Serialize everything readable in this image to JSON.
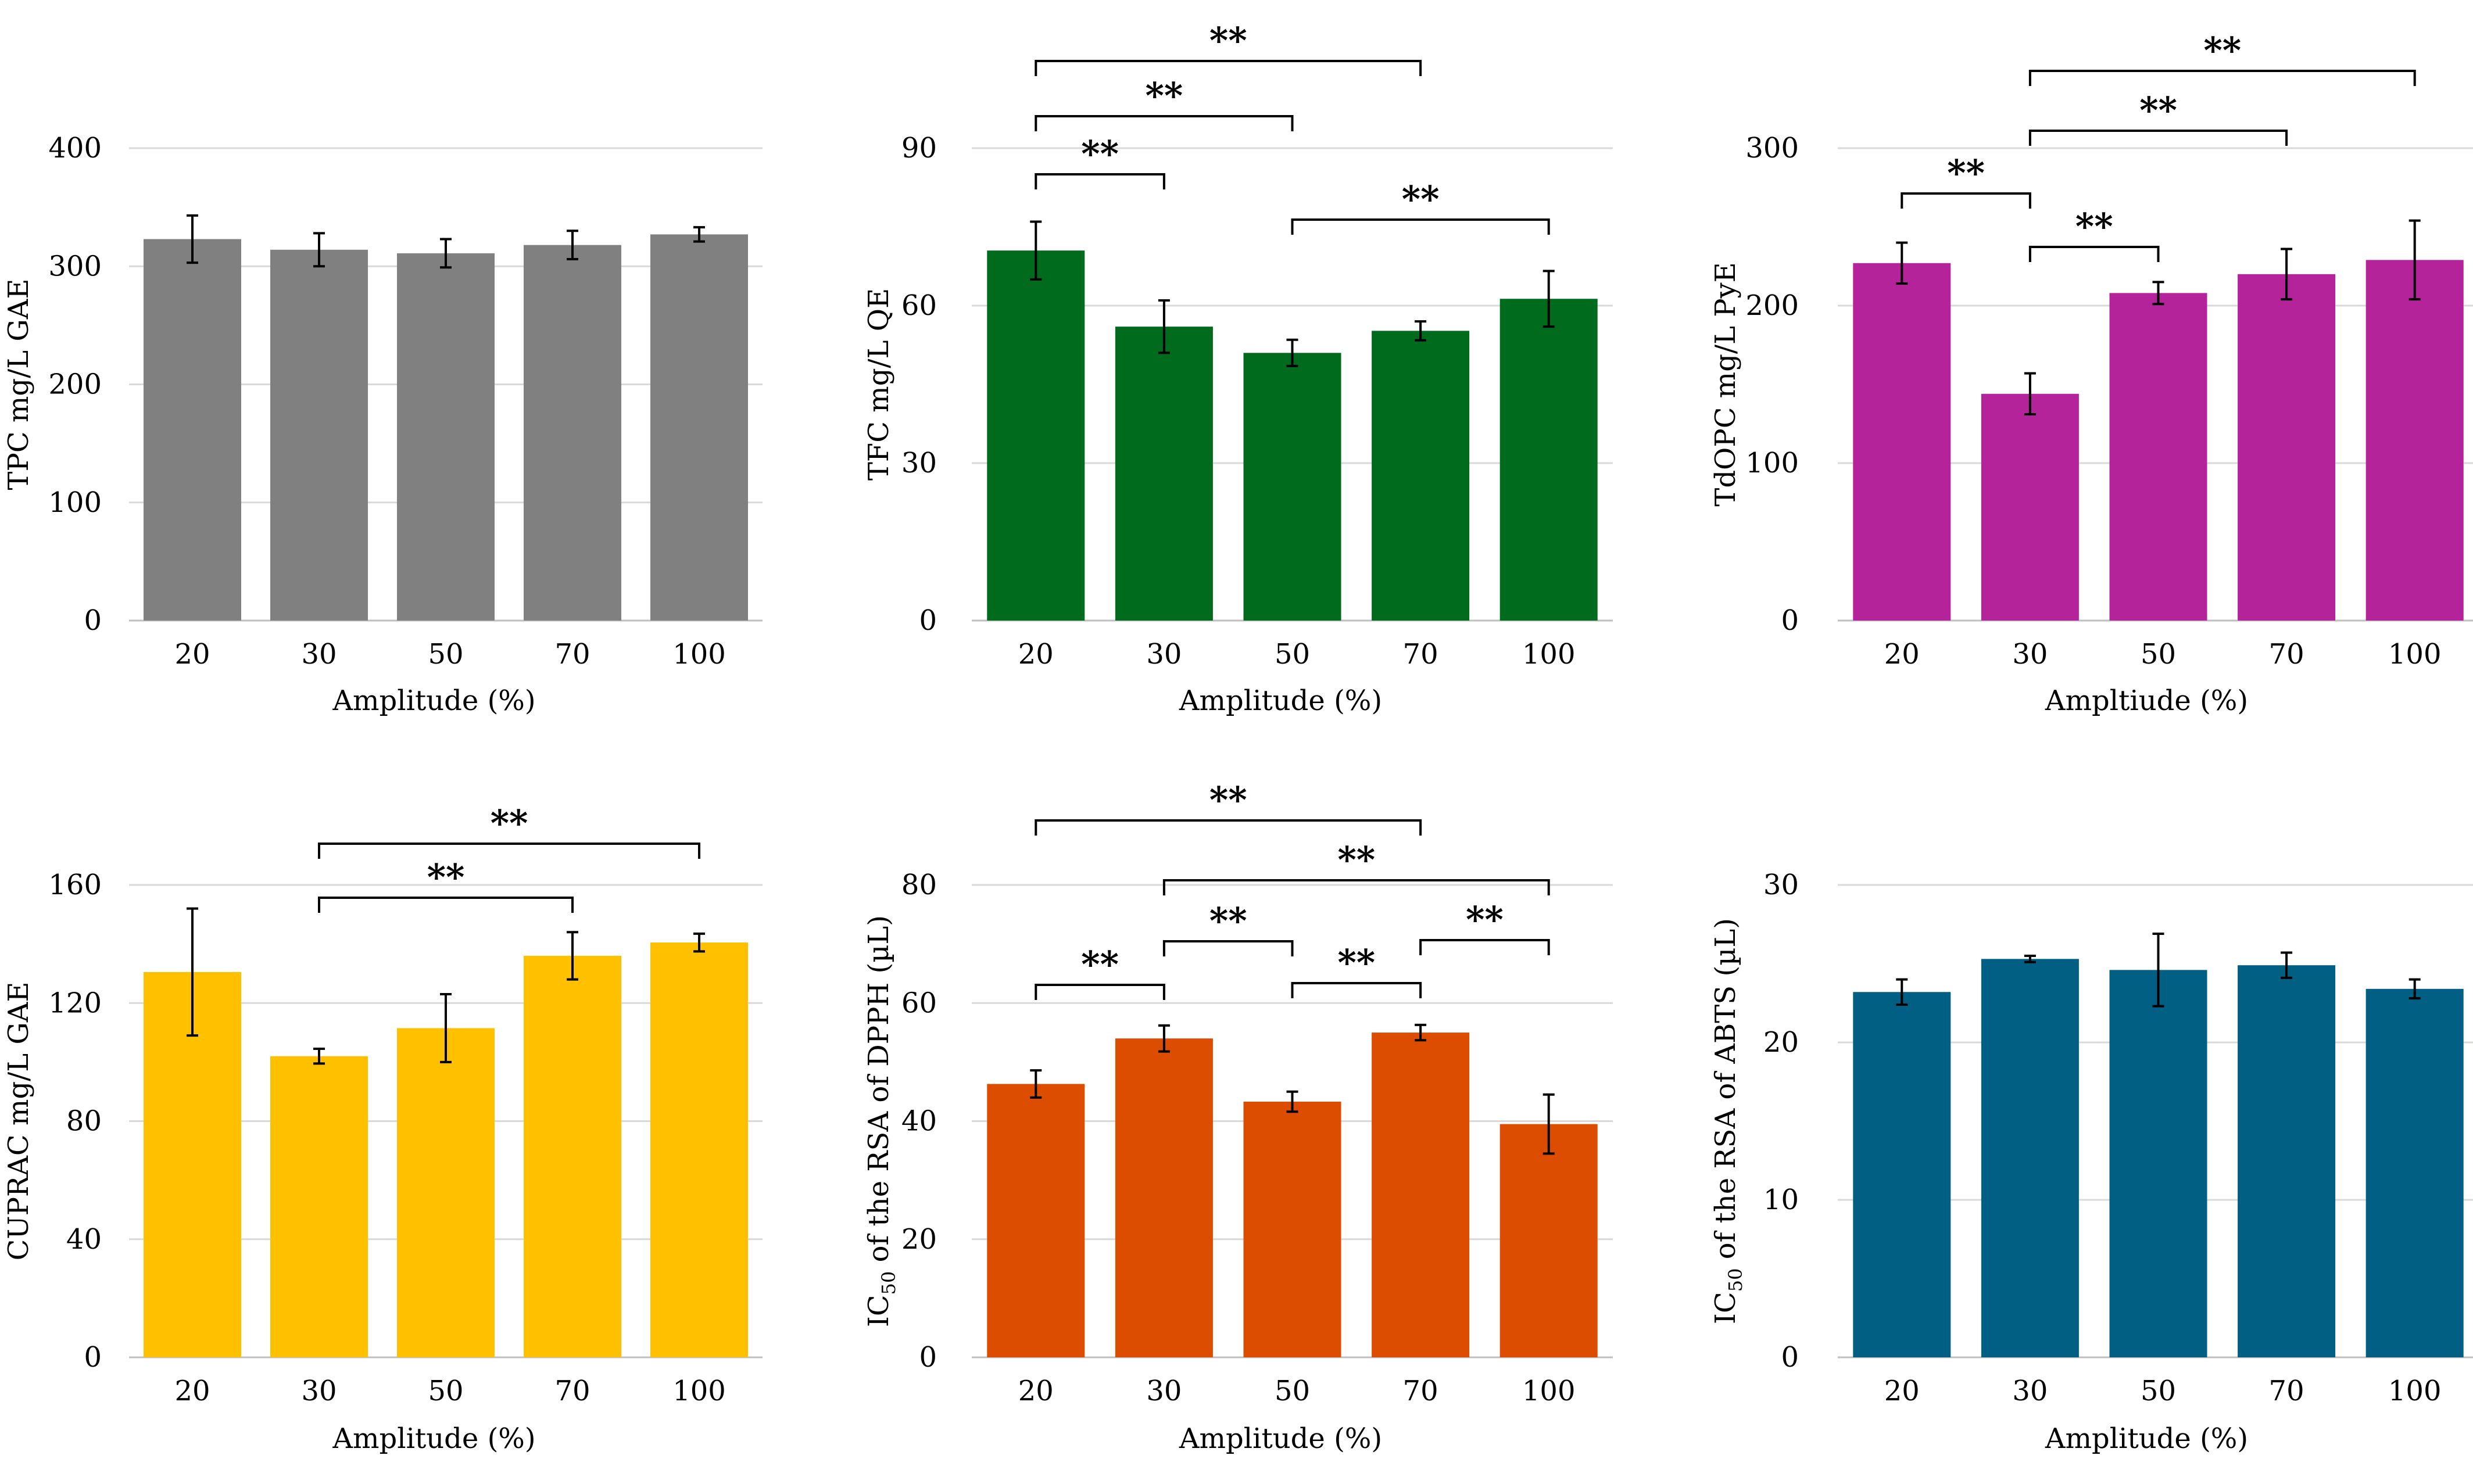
{
  "chart_data": [
    {
      "type": "bar",
      "title": "",
      "categories": [
        "20",
        "30",
        "50",
        "70",
        "100"
      ],
      "values": [
        323,
        314,
        311,
        318,
        327
      ],
      "errors": [
        20,
        14,
        12,
        12,
        6
      ],
      "xlabel": "Amplitude (%)",
      "ylabel": "TPC mg/L GAE",
      "ylim": [
        0,
        400
      ],
      "yticks": [
        "0",
        "100",
        "200",
        "300",
        "400"
      ],
      "color": "#808080",
      "grid": true,
      "significance": []
    },
    {
      "type": "bar",
      "title": "",
      "categories": [
        "20",
        "30",
        "50",
        "70",
        "100"
      ],
      "values": [
        70.5,
        56,
        51,
        55.2,
        61.3
      ],
      "errors": [
        5.5,
        5,
        2.5,
        1.8,
        5.3
      ],
      "xlabel": "Amplitude (%)",
      "ylabel": "TFC mg/L QE",
      "ylim": [
        0,
        90
      ],
      "yticks": [
        "0",
        "30",
        "60",
        "90"
      ],
      "color": "#006b1d",
      "grid": true,
      "significance": [
        {
          "from": 0,
          "to": 3,
          "label": "**"
        },
        {
          "from": 0,
          "to": 2,
          "label": "**"
        },
        {
          "from": 0,
          "to": 1,
          "label": "**"
        },
        {
          "from": 2,
          "to": 4,
          "label": "**"
        }
      ]
    },
    {
      "type": "bar",
      "title": "",
      "categories": [
        "20",
        "30",
        "50",
        "70",
        "100"
      ],
      "values": [
        227,
        144,
        208,
        220,
        229
      ],
      "errors": [
        13,
        13,
        7,
        16,
        25
      ],
      "xlabel": "Ampltiude (%)",
      "ylabel": "TdOPC mg/L PyE",
      "ylim": [
        0,
        300
      ],
      "yticks": [
        "0",
        "100",
        "200",
        "300"
      ],
      "color": "#b5239a",
      "grid": true,
      "significance": [
        {
          "from": 1,
          "to": 4,
          "label": "**"
        },
        {
          "from": 1,
          "to": 3,
          "label": "**"
        },
        {
          "from": 0,
          "to": 1,
          "label": "**"
        },
        {
          "from": 1,
          "to": 2,
          "label": "**"
        }
      ]
    },
    {
      "type": "bar",
      "title": "",
      "categories": [
        "20",
        "30",
        "50",
        "70",
        "100"
      ],
      "values": [
        130.5,
        102,
        111.5,
        136,
        140.5
      ],
      "errors": [
        21.5,
        2.5,
        11.5,
        8,
        3
      ],
      "xlabel": "Amplitude (%)",
      "ylabel": "CUPRAC mg/L GAE",
      "ylim": [
        0,
        160
      ],
      "yticks": [
        "0",
        "40",
        "80",
        "120",
        "160"
      ],
      "color": "#ffc000",
      "grid": true,
      "significance": [
        {
          "from": 1,
          "to": 4,
          "label": "**"
        },
        {
          "from": 1,
          "to": 3,
          "label": "**"
        }
      ]
    },
    {
      "type": "bar",
      "title": "",
      "categories": [
        "20",
        "30",
        "50",
        "70",
        "100"
      ],
      "values": [
        46.3,
        54,
        43.3,
        55,
        39.5
      ],
      "errors": [
        2.3,
        2.2,
        1.7,
        1.3,
        5
      ],
      "xlabel": "Amplitude (%)",
      "ylabel": "IC50 of the RSA of DPPH (µL)",
      "ylabel_parts": [
        "IC",
        "50",
        " of the RSA of DPPH (µL)"
      ],
      "ylim": [
        0,
        80
      ],
      "yticks": [
        "0",
        "20",
        "40",
        "60",
        "80"
      ],
      "color": "#dc4d02",
      "grid": true,
      "significance": [
        {
          "from": 0,
          "to": 3,
          "label": "**"
        },
        {
          "from": 1,
          "to": 4,
          "label": "**"
        },
        {
          "from": 1,
          "to": 2,
          "label": "**"
        },
        {
          "from": 3,
          "to": 4,
          "label": "**"
        },
        {
          "from": 0,
          "to": 1,
          "label": "**"
        },
        {
          "from": 2,
          "to": 3,
          "label": "**"
        }
      ]
    },
    {
      "type": "bar",
      "title": "",
      "categories": [
        "20",
        "30",
        "50",
        "70",
        "100"
      ],
      "values": [
        23.2,
        25.3,
        24.6,
        24.9,
        23.4
      ],
      "errors": [
        0.8,
        0.2,
        2.3,
        0.8,
        0.6
      ],
      "xlabel": "Amplitude (%)",
      "ylabel": "IC50 of the RSA of ABTS (µL)",
      "ylabel_parts": [
        "IC",
        "50",
        " of the RSA of ABTS (µL)"
      ],
      "ylim": [
        0,
        30
      ],
      "yticks": [
        "0",
        "10",
        "20",
        "30"
      ],
      "color": "#005f83",
      "grid": true,
      "significance": []
    }
  ]
}
